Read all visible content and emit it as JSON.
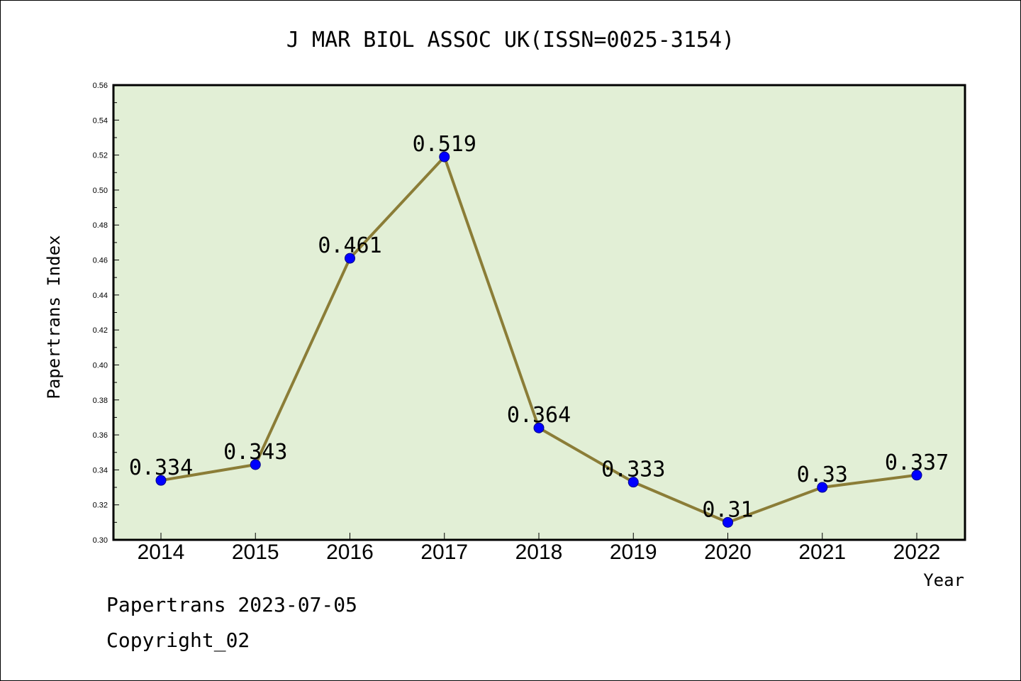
{
  "chart_data": {
    "type": "line",
    "title": "J MAR BIOL ASSOC UK(ISSN=0025-3154)",
    "xlabel": "Year",
    "ylabel": "Papertrans Index",
    "x": [
      "2014",
      "2015",
      "2016",
      "2017",
      "2018",
      "2019",
      "2020",
      "2021",
      "2022"
    ],
    "values": [
      0.334,
      0.343,
      0.461,
      0.519,
      0.364,
      0.333,
      0.31,
      0.33,
      0.337
    ],
    "data_labels": [
      "0.334",
      "0.343",
      "0.461",
      "0.519",
      "0.364",
      "0.333",
      "0.31",
      "0.33",
      "0.337"
    ],
    "ylim": [
      0.3,
      0.56
    ],
    "yticks": [
      "0.30",
      "0.32",
      "0.34",
      "0.36",
      "0.38",
      "0.40",
      "0.42",
      "0.44",
      "0.46",
      "0.48",
      "0.50",
      "0.52",
      "0.54",
      "0.56"
    ],
    "grid": false,
    "colors": {
      "plot_background": "#e2efd6",
      "line": "#8b7d37",
      "marker": "#0000ff"
    }
  },
  "footer": {
    "line1": "Papertrans 2023-07-05",
    "line2": "Copyright_02"
  }
}
